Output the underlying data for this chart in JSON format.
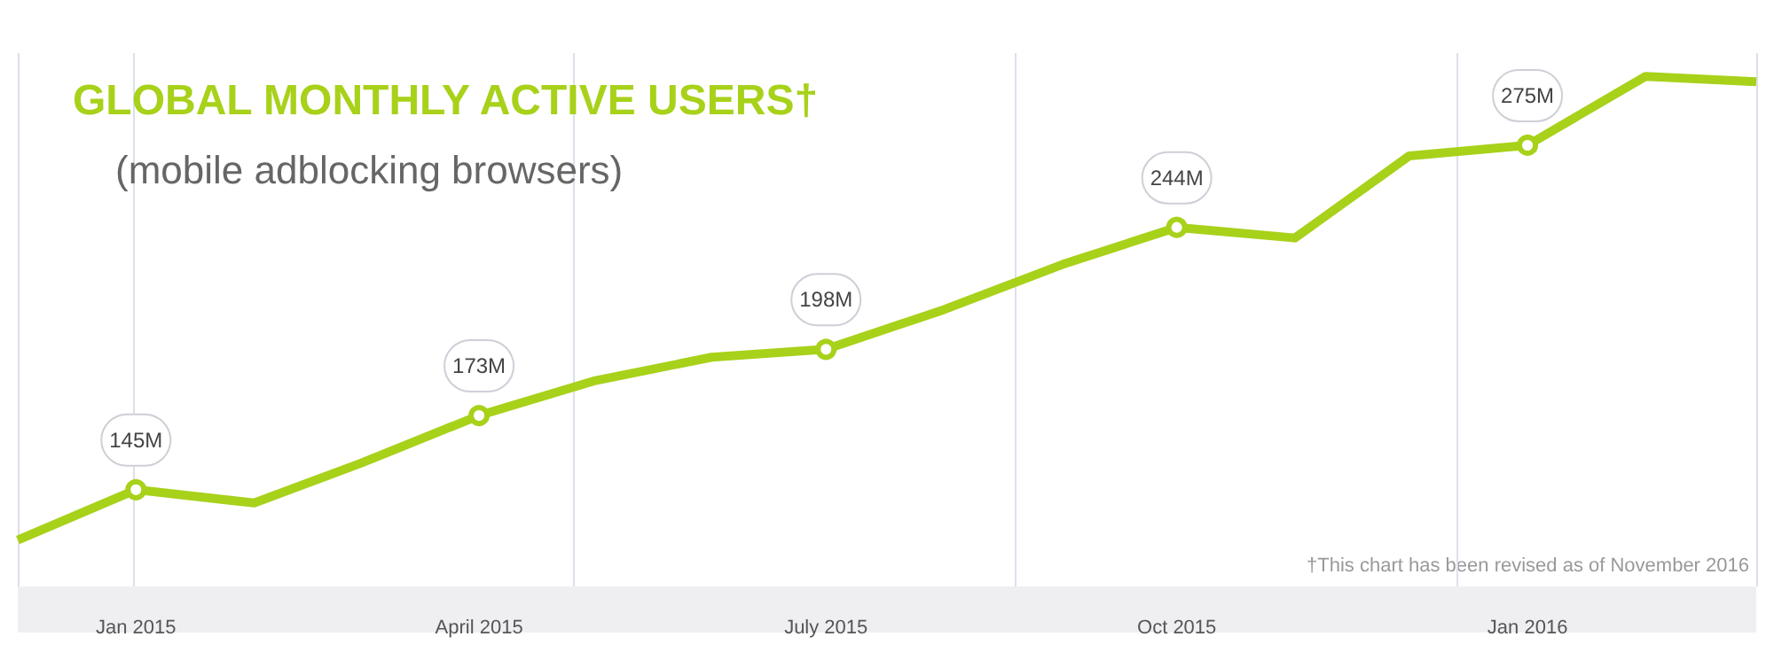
{
  "chart_data": {
    "type": "line",
    "title": "GLOBAL MONTHLY ACTIVE USERS†",
    "subtitle": "(mobile adblocking browsers)",
    "x": [
      "2014-12",
      "2015-01",
      "2015-02",
      "2015-03",
      "2015-04",
      "2015-05",
      "2015-06",
      "2015-07",
      "2015-08",
      "2015-09",
      "2015-10",
      "2015-11",
      "2015-12",
      "2016-01",
      "2016-02",
      "2016-03"
    ],
    "series": [
      {
        "color": "#a8d11a",
        "values": [
          126,
          145,
          140,
          155,
          173,
          186,
          195,
          198,
          213,
          230,
          244,
          240,
          271,
          275,
          301,
          299
        ],
        "value_labels": [
          null,
          "145M",
          null,
          null,
          "173M",
          null,
          null,
          "198M",
          null,
          null,
          "244M",
          null,
          null,
          "275M",
          null,
          null
        ]
      }
    ],
    "xlim": [
      "2014-12",
      "2016-03"
    ],
    "xticks": [
      {
        "value": "2015-01",
        "label": "Jan 2015"
      },
      {
        "value": "2015-04",
        "label": "April 2015"
      },
      {
        "value": "2015-07",
        "label": "July 2015"
      },
      {
        "value": "2015-10",
        "label": "Oct 2015"
      },
      {
        "value": "2016-01",
        "label": "Jan 2016"
      }
    ],
    "tick_labels": "x",
    "grid": "x",
    "annotations": [
      "†This chart has been revised as of November 2016"
    ]
  }
}
